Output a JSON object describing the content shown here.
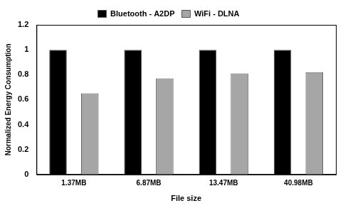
{
  "chart_data": {
    "type": "bar",
    "categories": [
      "1.37MB",
      "6.87MB",
      "13.47MB",
      "40.98MB"
    ],
    "series": [
      {
        "name": "Bluetooth - A2DP",
        "color": "#000000",
        "values": [
          1,
          1,
          1,
          1
        ]
      },
      {
        "name": "WiFi - DLNA",
        "color": "#a6a6a6",
        "values": [
          0.65,
          0.77,
          0.81,
          0.82
        ]
      }
    ],
    "x_label": "File size",
    "y_label": "Normalized Energy Consumption",
    "ylim": [
      0,
      1.2
    ],
    "yticks": [
      0,
      0.2,
      0.4,
      0.6,
      0.8,
      1,
      1.2
    ],
    "grid": false,
    "legend": "top"
  }
}
